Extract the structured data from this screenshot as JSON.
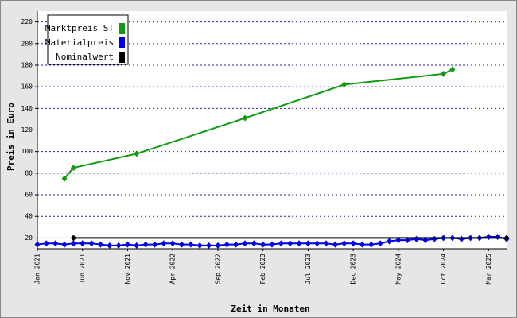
{
  "chart_data": {
    "type": "line",
    "y_label": "Preis in Euro",
    "x_label": "Zeit in Monaten",
    "xlim": [
      "2021-01",
      "2025-05"
    ],
    "ylim": [
      10,
      230
    ],
    "yticks": [
      20,
      40,
      60,
      80,
      100,
      120,
      140,
      160,
      180,
      200,
      220
    ],
    "xticks": [
      {
        "value": "2021-01",
        "label": "Jan 2021"
      },
      {
        "value": "2021-06",
        "label": "Jun 2021"
      },
      {
        "value": "2021-11",
        "label": "Nov 2021"
      },
      {
        "value": "2022-04",
        "label": "Apr 2022"
      },
      {
        "value": "2022-09",
        "label": "Sep 2022"
      },
      {
        "value": "2023-02",
        "label": "Feb 2023"
      },
      {
        "value": "2023-07",
        "label": "Jul 2023"
      },
      {
        "value": "2023-12",
        "label": "Dec 2023"
      },
      {
        "value": "2024-05",
        "label": "May 2024"
      },
      {
        "value": "2024-10",
        "label": "Oct 2024"
      },
      {
        "value": "2025-03",
        "label": "Mar 2025"
      }
    ],
    "grid": true,
    "legend": "upper left",
    "series": [
      {
        "name": "Marktpreis ST",
        "color": "#119911",
        "x": [
          "2021-04",
          "2021-05",
          "2021-12",
          "2022-12",
          "2023-11",
          "2024-10",
          "2024-11"
        ],
        "values": [
          75,
          85,
          98,
          131,
          162,
          172,
          176
        ]
      },
      {
        "name": "Materialpreis",
        "color": "#0000ee",
        "x": [
          "2021-01",
          "2021-02",
          "2021-03",
          "2021-04",
          "2021-05",
          "2021-06",
          "2021-07",
          "2021-08",
          "2021-09",
          "2021-10",
          "2021-11",
          "2021-12",
          "2022-01",
          "2022-02",
          "2022-03",
          "2022-04",
          "2022-05",
          "2022-06",
          "2022-07",
          "2022-08",
          "2022-09",
          "2022-10",
          "2022-11",
          "2022-12",
          "2023-01",
          "2023-02",
          "2023-03",
          "2023-04",
          "2023-05",
          "2023-06",
          "2023-07",
          "2023-08",
          "2023-09",
          "2023-10",
          "2023-11",
          "2023-12",
          "2024-01",
          "2024-02",
          "2024-03",
          "2024-04",
          "2024-05",
          "2024-06",
          "2024-07",
          "2024-08",
          "2024-09",
          "2024-10",
          "2024-11",
          "2024-12",
          "2025-01",
          "2025-02",
          "2025-03",
          "2025-04",
          "2025-05"
        ],
        "values": [
          14,
          15,
          15,
          14,
          15,
          15,
          15,
          14,
          13,
          13,
          14,
          13,
          14,
          14,
          15,
          15,
          14,
          14,
          13,
          13,
          13,
          14,
          14,
          15,
          15,
          14,
          14,
          15,
          15,
          15,
          15,
          15,
          15,
          14,
          15,
          15,
          14,
          14,
          15,
          17,
          18,
          18,
          19,
          18,
          19,
          20,
          20,
          19,
          20,
          20,
          21,
          21,
          19
        ]
      },
      {
        "name": "Nominalwert",
        "color": "#000000",
        "x": [
          "2021-05",
          "2025-05"
        ],
        "values": [
          20,
          20
        ]
      }
    ]
  }
}
